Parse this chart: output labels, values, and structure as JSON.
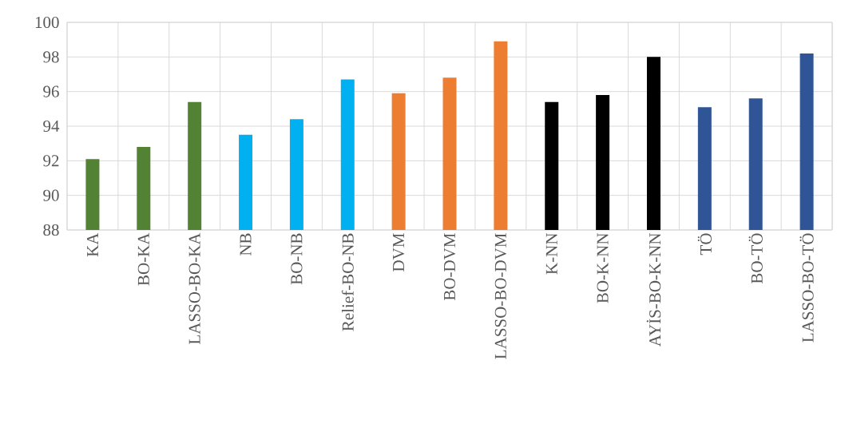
{
  "chart_data": {
    "type": "bar",
    "categories": [
      "KA",
      "BO-KA",
      "LASSO-BO-KA",
      "NB",
      "BO-NB",
      "Relief-BO-NB",
      "DVM",
      "BO-DVM",
      "LASSO-BO-DVM",
      "K-NN",
      "BO-K-NN",
      "AYİS-BO-K-NN",
      "TÖ",
      "BO-TÖ",
      "LASSO-BO-TÖ"
    ],
    "values": [
      92.1,
      92.8,
      95.4,
      93.5,
      94.4,
      96.7,
      95.9,
      96.8,
      98.9,
      95.4,
      95.8,
      98.0,
      95.1,
      95.6,
      98.2
    ],
    "colors": [
      "#548235",
      "#548235",
      "#548235",
      "#00b0f0",
      "#00b0f0",
      "#00b0f0",
      "#ed7d31",
      "#ed7d31",
      "#ed7d31",
      "#000000",
      "#000000",
      "#000000",
      "#2f5597",
      "#2f5597",
      "#2f5597"
    ],
    "ylim": [
      88,
      100
    ],
    "yticks": [
      88,
      90,
      92,
      94,
      96,
      98,
      100
    ],
    "grid": true
  }
}
